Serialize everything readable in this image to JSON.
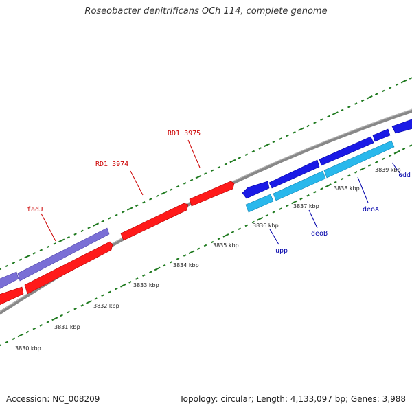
{
  "title": "Roseobacter denitrificans OCh 114, complete genome",
  "footer": {
    "accession": "Accession: NC_008209",
    "summary": "Topology: circular; Length: 4,133,097 bp; Genes: 3,988"
  },
  "colors": {
    "backbone": "#888888",
    "forward_cds": "#ff1a1a",
    "reverse_cds_purple": "#7a6fd6",
    "reverse_cds_blue": "#1a1ae6",
    "rna_cyan": "#29b8ec",
    "gc_ticks": "#1f7a1f",
    "forward_label": "#cc0000",
    "reverse_label": "#0000aa"
  },
  "scale_labels": [
    "3830 kbp",
    "3831 kbp",
    "3832 kbp",
    "3833 kbp",
    "3834 kbp",
    "3835 kbp",
    "3836 kbp",
    "3837 kbp",
    "3838 kbp",
    "3839 kbp"
  ],
  "gene_labels": {
    "fadJ": "fadJ",
    "RD1_3974": "RD1_3974",
    "RD1_3975": "RD1_3975",
    "upp": "upp",
    "deoB": "deoB",
    "deoA": "deoA",
    "cdd": "cdd"
  }
}
